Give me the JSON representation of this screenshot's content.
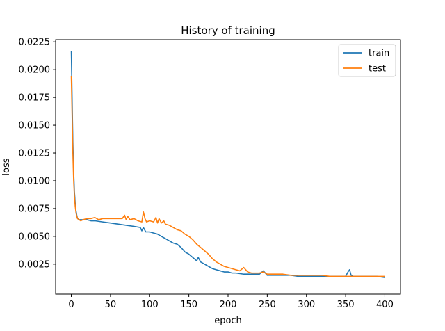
{
  "chart_data": {
    "type": "line",
    "title": "History of training",
    "xlabel": "epoch",
    "ylabel": "loss",
    "xlim": [
      -20,
      420
    ],
    "ylim": [
      -0.0002,
      0.0227
    ],
    "xticks": [
      0,
      50,
      100,
      150,
      200,
      250,
      300,
      350,
      400
    ],
    "yticks": [
      0.0025,
      0.005,
      0.0075,
      0.01,
      0.0125,
      0.015,
      0.0175,
      0.02,
      0.0225
    ],
    "ytick_labels": [
      "0.0025",
      "0.0050",
      "0.0075",
      "0.0100",
      "0.0125",
      "0.0150",
      "0.0175",
      "0.0200",
      "0.0225"
    ],
    "grid": false,
    "legend": "top-right",
    "series": [
      {
        "name": "train",
        "color": "#1f77b4",
        "x": [
          0,
          1,
          2,
          3,
          4,
          5,
          6,
          7,
          8,
          10,
          12,
          15,
          20,
          25,
          30,
          40,
          50,
          60,
          70,
          80,
          88,
          90,
          92,
          95,
          100,
          105,
          110,
          115,
          120,
          125,
          130,
          135,
          140,
          145,
          150,
          155,
          160,
          162,
          165,
          170,
          175,
          180,
          185,
          190,
          195,
          200,
          205,
          210,
          220,
          230,
          240,
          245,
          250,
          255,
          260,
          270,
          280,
          290,
          300,
          310,
          320,
          330,
          340,
          350,
          353,
          355,
          357,
          360,
          370,
          380,
          390,
          400
        ],
        "y": [
          0.0217,
          0.0175,
          0.0135,
          0.0108,
          0.009,
          0.008,
          0.0073,
          0.0069,
          0.0066,
          0.0065,
          0.0065,
          0.0065,
          0.0065,
          0.0064,
          0.0064,
          0.0063,
          0.0062,
          0.0061,
          0.006,
          0.0059,
          0.0058,
          0.0055,
          0.0058,
          0.0054,
          0.0054,
          0.0053,
          0.0052,
          0.005,
          0.0048,
          0.0046,
          0.0044,
          0.0043,
          0.004,
          0.0036,
          0.0034,
          0.0031,
          0.0028,
          0.0031,
          0.0027,
          0.0025,
          0.0023,
          0.0021,
          0.002,
          0.0019,
          0.0018,
          0.0018,
          0.0017,
          0.0017,
          0.0016,
          0.0016,
          0.0016,
          0.0019,
          0.0015,
          0.0015,
          0.0015,
          0.0015,
          0.0015,
          0.0014,
          0.0014,
          0.0014,
          0.0014,
          0.0014,
          0.0014,
          0.0014,
          0.0018,
          0.002,
          0.0015,
          0.0014,
          0.0014,
          0.0014,
          0.0014,
          0.0013
        ]
      },
      {
        "name": "test",
        "color": "#ff7f0e",
        "x": [
          0,
          1,
          2,
          3,
          4,
          5,
          6,
          7,
          8,
          10,
          12,
          15,
          20,
          25,
          30,
          35,
          40,
          50,
          60,
          65,
          68,
          70,
          72,
          75,
          80,
          85,
          90,
          92,
          94,
          96,
          100,
          105,
          108,
          110,
          112,
          115,
          118,
          120,
          125,
          130,
          135,
          140,
          145,
          150,
          155,
          160,
          165,
          170,
          175,
          180,
          185,
          190,
          195,
          200,
          205,
          210,
          215,
          220,
          225,
          230,
          240,
          245,
          250,
          260,
          270,
          280,
          290,
          300,
          310,
          320,
          330,
          340,
          350,
          360,
          370,
          380,
          390,
          400
        ],
        "y": [
          0.0194,
          0.016,
          0.0125,
          0.01,
          0.0086,
          0.0077,
          0.0071,
          0.0068,
          0.0066,
          0.0065,
          0.0064,
          0.0065,
          0.0066,
          0.0066,
          0.0067,
          0.0065,
          0.0066,
          0.0066,
          0.0066,
          0.0066,
          0.0069,
          0.0065,
          0.0068,
          0.0065,
          0.0066,
          0.0064,
          0.0063,
          0.0072,
          0.0066,
          0.0063,
          0.0064,
          0.0063,
          0.0067,
          0.0062,
          0.0066,
          0.0062,
          0.0064,
          0.0061,
          0.006,
          0.0058,
          0.0056,
          0.0055,
          0.0052,
          0.005,
          0.0047,
          0.0043,
          0.004,
          0.0037,
          0.0034,
          0.003,
          0.0027,
          0.0025,
          0.0023,
          0.0022,
          0.0021,
          0.002,
          0.0019,
          0.0022,
          0.0018,
          0.0017,
          0.0017,
          0.0018,
          0.0016,
          0.0016,
          0.0016,
          0.0015,
          0.0015,
          0.0015,
          0.0015,
          0.0015,
          0.0014,
          0.0014,
          0.0014,
          0.0014,
          0.0014,
          0.0014,
          0.0014,
          0.0014
        ]
      }
    ]
  }
}
